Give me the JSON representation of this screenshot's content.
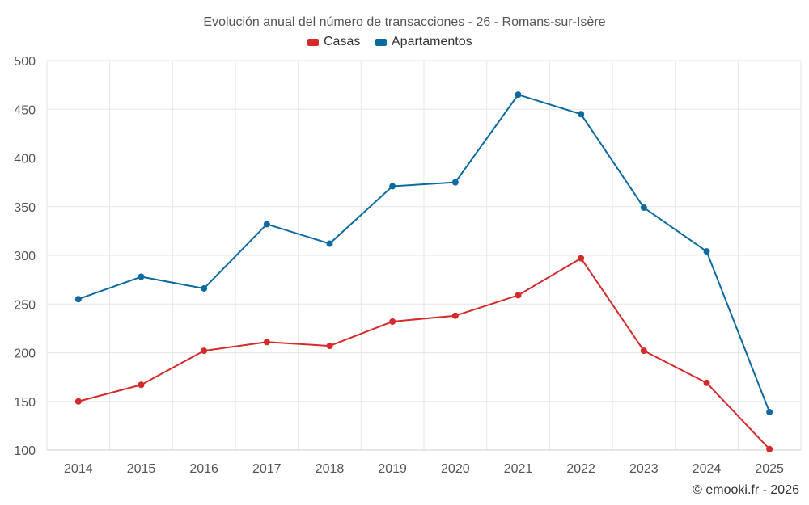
{
  "chart_data": {
    "type": "line",
    "title": "Evolución anual del número de transacciones - 26 - Romans-sur-Isère",
    "xlabel": "",
    "ylabel": "",
    "categories": [
      "2014",
      "2015",
      "2016",
      "2017",
      "2018",
      "2019",
      "2020",
      "2021",
      "2022",
      "2023",
      "2024",
      "2025"
    ],
    "ylim": [
      100,
      500
    ],
    "yticks": [
      100,
      150,
      200,
      250,
      300,
      350,
      400,
      450,
      500
    ],
    "grid": true,
    "legend_position": "top-center",
    "series": [
      {
        "name": "Casas",
        "color": "#d42a2a",
        "values": [
          150,
          167,
          202,
          211,
          207,
          232,
          238,
          259,
          297,
          202,
          169,
          101
        ]
      },
      {
        "name": "Apartamentos",
        "color": "#0b6a9e",
        "values": [
          255,
          278,
          266,
          332,
          312,
          371,
          375,
          465,
          445,
          349,
          304,
          139
        ]
      }
    ],
    "credit": "© emooki.fr - 2026"
  }
}
